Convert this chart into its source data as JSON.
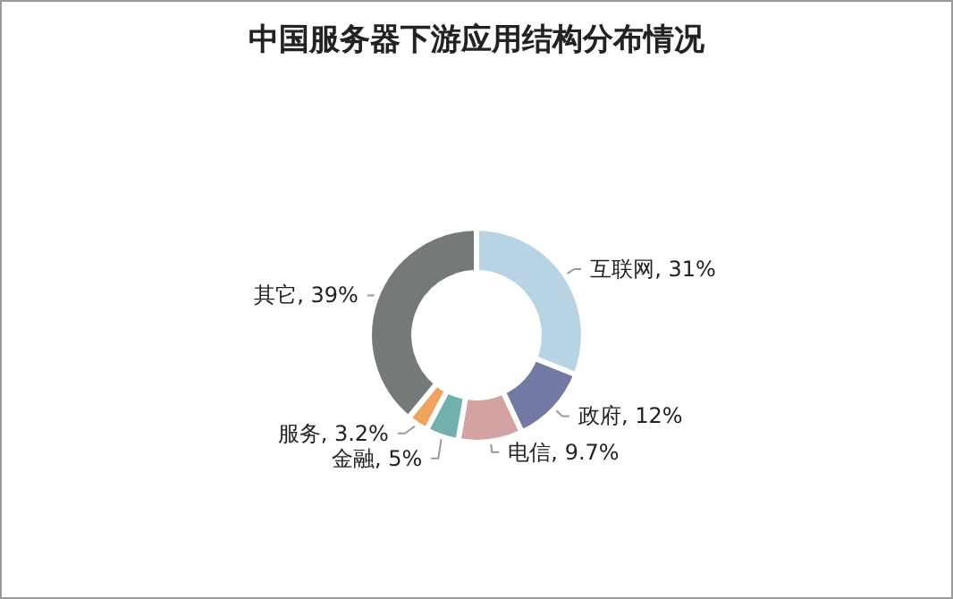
{
  "chart_data": {
    "type": "donut",
    "title": "中国服务器下游应用结构分布情况",
    "categories": [
      "互联网",
      "政府",
      "电信",
      "金融",
      "服务",
      "其它"
    ],
    "values": [
      31,
      12,
      9.7,
      5,
      3.2,
      39
    ],
    "value_labels": [
      "31%",
      "12%",
      "9.7%",
      "5%",
      "3.2%",
      "39%"
    ],
    "colors": [
      "#b7d3e4",
      "#7479a3",
      "#d3a3a4",
      "#72b0ae",
      "#eea35e",
      "#737a77"
    ],
    "legend": false
  }
}
